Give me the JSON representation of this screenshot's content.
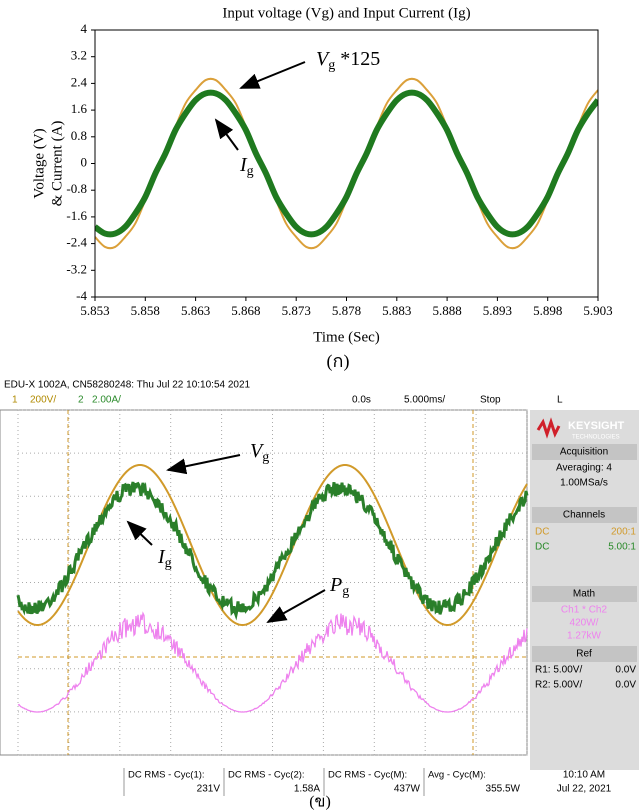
{
  "chart_data": {
    "type": "line",
    "title": "Input voltage (Vg) and Input Current (Ig)",
    "x_label": "Time (Sec)",
    "y_label": [
      "Voltage (V)",
      "& Current (A)"
    ],
    "x": [
      5.853,
      5.854,
      5.855,
      5.856,
      5.857,
      5.858,
      5.859,
      5.86,
      5.861,
      5.862,
      5.863,
      5.864,
      5.865,
      5.866,
      5.867,
      5.868,
      5.869,
      5.87,
      5.871,
      5.872,
      5.873,
      5.874,
      5.875,
      5.876,
      5.877,
      5.878,
      5.879,
      5.88,
      5.881,
      5.882,
      5.883,
      5.884,
      5.885,
      5.886,
      5.887,
      5.888,
      5.889,
      5.89,
      5.891,
      5.892,
      5.893,
      5.894,
      5.895,
      5.896,
      5.897,
      5.898,
      5.899,
      5.9,
      5.901,
      5.902,
      5.903
    ],
    "xlim": [
      5.853,
      5.903
    ],
    "xticks": [
      5.853,
      5.858,
      5.863,
      5.868,
      5.873,
      5.878,
      5.883,
      5.888,
      5.893,
      5.898,
      5.903
    ],
    "ylim": [
      -4,
      4
    ],
    "yticks": [
      -4,
      -3.2,
      -2.4,
      -1.6,
      -0.8,
      0,
      0.8,
      1.6,
      2.4,
      3.2,
      4
    ],
    "series": [
      {
        "color": "#dba03a",
        "values": [
          -2.2,
          -2.5,
          -2.5,
          -2.2,
          -1.8,
          -1.1,
          -0.4,
          0.4,
          1.1,
          1.8,
          2.2,
          2.5,
          2.5,
          2.2,
          1.8,
          1.1,
          0.4,
          -0.4,
          -1.1,
          -1.8,
          -2.2,
          -2.5,
          -2.5,
          -2.2,
          -1.8,
          -1.1,
          -0.4,
          0.4,
          1.1,
          1.8,
          2.2,
          2.5,
          2.5,
          2.2,
          1.8,
          1.1,
          0.4,
          -0.4,
          -1.1,
          -1.8,
          -2.2,
          -2.5,
          -2.5,
          -2.2,
          -1.8,
          -1.1,
          -0.4,
          0.4,
          1.1,
          1.8,
          2.2
        ]
      },
      {
        "color": "#1f7a1f",
        "values": [
          -1.9,
          -2.1,
          -2.1,
          -1.9,
          -1.5,
          -1.0,
          -0.3,
          0.3,
          1.0,
          1.5,
          1.9,
          2.1,
          2.1,
          1.9,
          1.5,
          1.0,
          0.3,
          -0.3,
          -1.0,
          -1.5,
          -1.9,
          -2.1,
          -2.1,
          -1.9,
          -1.5,
          -1.0,
          -0.3,
          0.3,
          1.0,
          1.5,
          1.9,
          2.1,
          2.1,
          1.9,
          1.5,
          1.0,
          0.3,
          -0.3,
          -1.0,
          -1.5,
          -1.9,
          -2.1,
          -2.1,
          -1.9,
          -1.5,
          -1.0,
          -0.3,
          0.3,
          1.0,
          1.5,
          1.9
        ]
      }
    ],
    "annotations": [
      {
        "text": "V",
        "sub": "g",
        "suffix": " *125"
      },
      {
        "text": "I",
        "sub": "g"
      }
    ]
  },
  "caption_a": "(ก)",
  "scope": {
    "header": "EDU-X 1002A, CN58280248: Thu Jul 22 10:10:54 2021",
    "ch1": "1",
    "ch1_scale": "200V/",
    "ch2": "2",
    "ch2_scale": "2.00A/",
    "time_offset": "0.0s",
    "time_scale": "5.000ms/",
    "status": "Stop",
    "trigger": "L",
    "brand": "KEYSIGHT",
    "brand_sub": "TECHNOLOGIES",
    "acquisition": {
      "title": "Acquisition",
      "lines": [
        "Averaging: 4",
        "1.00MSa/s"
      ]
    },
    "channels": {
      "title": "Channels",
      "rows": [
        [
          "DC",
          "200:1"
        ],
        [
          "DC",
          "5.00:1"
        ]
      ]
    },
    "math": {
      "title": "Math",
      "lines": [
        "Ch1 * Ch2",
        "420W/",
        "1.27kW"
      ]
    },
    "ref": {
      "title": "Ref",
      "rows": [
        [
          "R1: 5.00V/",
          "0.0V"
        ],
        [
          "R2: 5.00V/",
          "0.0V"
        ]
      ]
    },
    "measurements": [
      {
        "label": "DC RMS - Cyc(1):",
        "value": "231V"
      },
      {
        "label": "DC RMS - Cyc(2):",
        "value": "1.58A"
      },
      {
        "label": "DC RMS - Cyc(M):",
        "value": "437W"
      },
      {
        "label": "Avg - Cyc(M):",
        "value": "355.5W"
      }
    ],
    "clock": {
      "time": "10:10 AM",
      "date": "Jul 22, 2021"
    },
    "labels": [
      {
        "text": "V",
        "sub": "g"
      },
      {
        "text": "I",
        "sub": "g"
      },
      {
        "text": "P",
        "sub": "g"
      }
    ],
    "caption": "(ข)"
  }
}
